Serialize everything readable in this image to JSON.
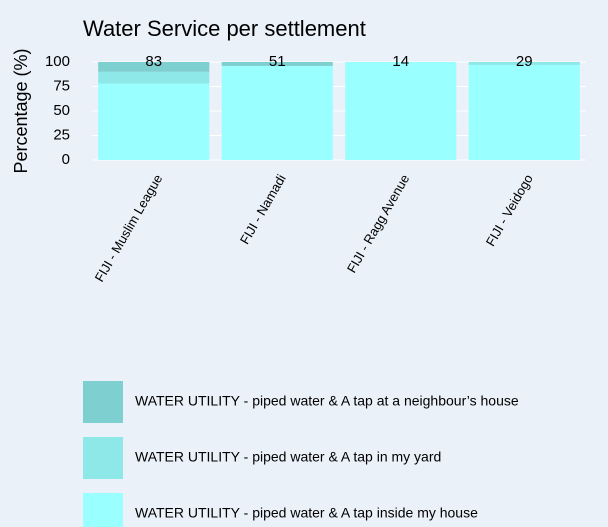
{
  "chart_data": {
    "type": "stacked_bar",
    "title": "Water Service per settlement",
    "y_label": "Percentage (%)",
    "categories": [
      "FIJI - Muslim League",
      "FIJI - Namadi",
      "FIJI - Ragg Avenue",
      "FIJI - Veidogo"
    ],
    "series": [
      {
        "name": "WATER UTILITY - piped water & A tap inside my house",
        "color": "#99ffff",
        "values": [
          78,
          96,
          100,
          97
        ]
      },
      {
        "name": "WATER UTILITY - piped water & A tap in my yard",
        "color": "#8ee8e8",
        "values": [
          12,
          0,
          0,
          3
        ]
      },
      {
        "name": "WATER UTILITY - piped water & A tap at a neighbour’s house",
        "color": "#7ecfcf",
        "values": [
          10,
          4,
          0,
          0
        ]
      }
    ],
    "bar_labels": [
      83,
      51,
      14,
      29
    ],
    "ylim": [
      0,
      100
    ],
    "yticks": [
      0,
      25,
      50,
      75,
      100
    ],
    "grid": true
  }
}
